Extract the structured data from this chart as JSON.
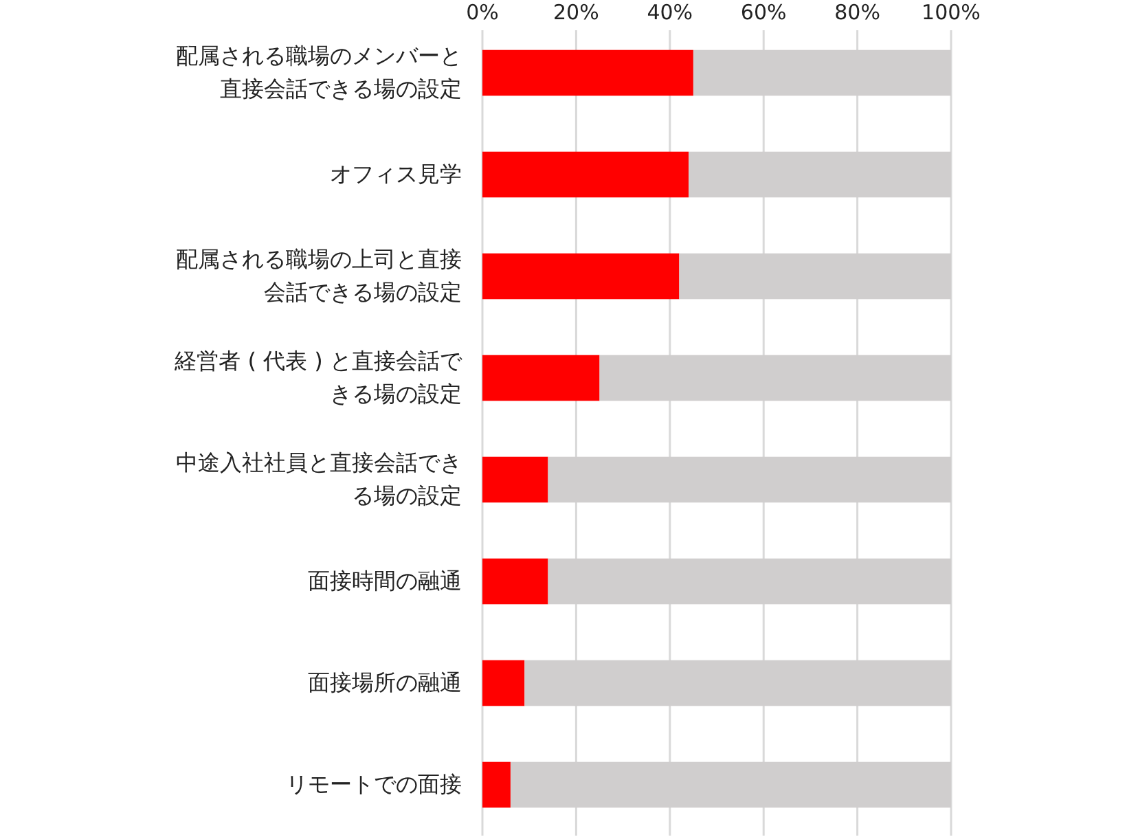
{
  "chart_data": {
    "type": "bar",
    "orientation": "horizontal",
    "stacked": true,
    "categories": [
      "配属される職場のメンバーと直接会話できる場の設定",
      "オフィス見学",
      "配属される職場の上司と直接会話できる場の設定",
      "経営者 ( 代表 ) と直接会話できる場の設定",
      "中途入社社員と直接会話できる場の設定",
      "面接時間の融通",
      "面接場所の融通",
      "リモートでの面接"
    ],
    "series": [
      {
        "color": "#ff0000",
        "values": [
          45,
          44,
          42,
          25,
          14,
          14,
          9,
          6
        ]
      },
      {
        "color": "#d0cece",
        "values": [
          55,
          56,
          58,
          75,
          86,
          86,
          91,
          94
        ]
      }
    ],
    "xlim": [
      0,
      100
    ],
    "xticks": [
      {
        "value": 0,
        "label": "0%"
      },
      {
        "value": 20,
        "label": "20%"
      },
      {
        "value": 40,
        "label": "40%"
      },
      {
        "value": 60,
        "label": "60%"
      },
      {
        "value": 80,
        "label": "80%"
      },
      {
        "value": 100,
        "label": "100%"
      }
    ],
    "grid": "x"
  }
}
